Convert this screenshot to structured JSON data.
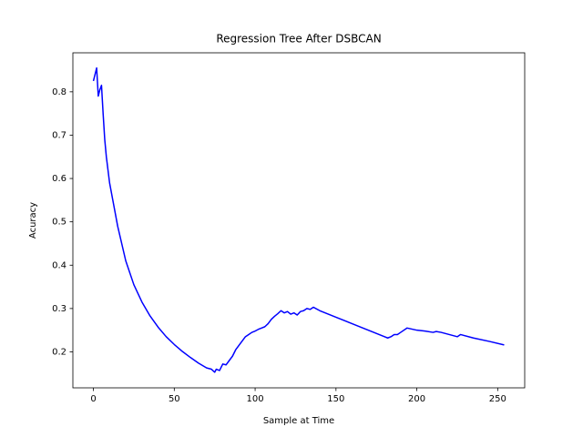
{
  "chart_data": {
    "type": "line",
    "title": "Regression Tree After DSBCAN",
    "xlabel": "Sample at Time",
    "ylabel": "Acuracy",
    "x": [
      0,
      1,
      2,
      3,
      4,
      5,
      6,
      7,
      8,
      10,
      12,
      15,
      20,
      25,
      30,
      35,
      40,
      45,
      50,
      55,
      60,
      65,
      70,
      73,
      75,
      76,
      78,
      80,
      82,
      84,
      86,
      88,
      90,
      92,
      94,
      96,
      98,
      100,
      102,
      104,
      106,
      108,
      110,
      112,
      114,
      116,
      118,
      120,
      122,
      124,
      126,
      128,
      130,
      132,
      134,
      136,
      140,
      150,
      160,
      170,
      180,
      182,
      184,
      186,
      188,
      190,
      194,
      200,
      205,
      210,
      212,
      215,
      220,
      225,
      227,
      235,
      245,
      254
    ],
    "values": [
      0.825,
      0.84,
      0.855,
      0.79,
      0.805,
      0.815,
      0.75,
      0.69,
      0.65,
      0.59,
      0.55,
      0.49,
      0.41,
      0.355,
      0.315,
      0.283,
      0.257,
      0.235,
      0.217,
      0.201,
      0.187,
      0.174,
      0.163,
      0.16,
      0.153,
      0.16,
      0.157,
      0.172,
      0.17,
      0.18,
      0.19,
      0.205,
      0.215,
      0.225,
      0.235,
      0.24,
      0.245,
      0.248,
      0.252,
      0.255,
      0.258,
      0.265,
      0.275,
      0.282,
      0.288,
      0.295,
      0.29,
      0.293,
      0.287,
      0.29,
      0.285,
      0.293,
      0.295,
      0.3,
      0.298,
      0.303,
      0.295,
      0.28,
      0.265,
      0.25,
      0.235,
      0.232,
      0.235,
      0.24,
      0.24,
      0.245,
      0.255,
      0.25,
      0.248,
      0.245,
      0.247,
      0.245,
      0.24,
      0.235,
      0.24,
      0.232,
      0.224,
      0.216
    ],
    "color": "#0000ff",
    "xlim": [
      -12.7,
      266.7
    ],
    "ylim": [
      0.117,
      0.89
    ],
    "xticks": [
      0,
      50,
      100,
      150,
      200,
      250
    ],
    "yticks": [
      0.2,
      0.3,
      0.4,
      0.5,
      0.6,
      0.7,
      0.8
    ],
    "grid": false
  }
}
